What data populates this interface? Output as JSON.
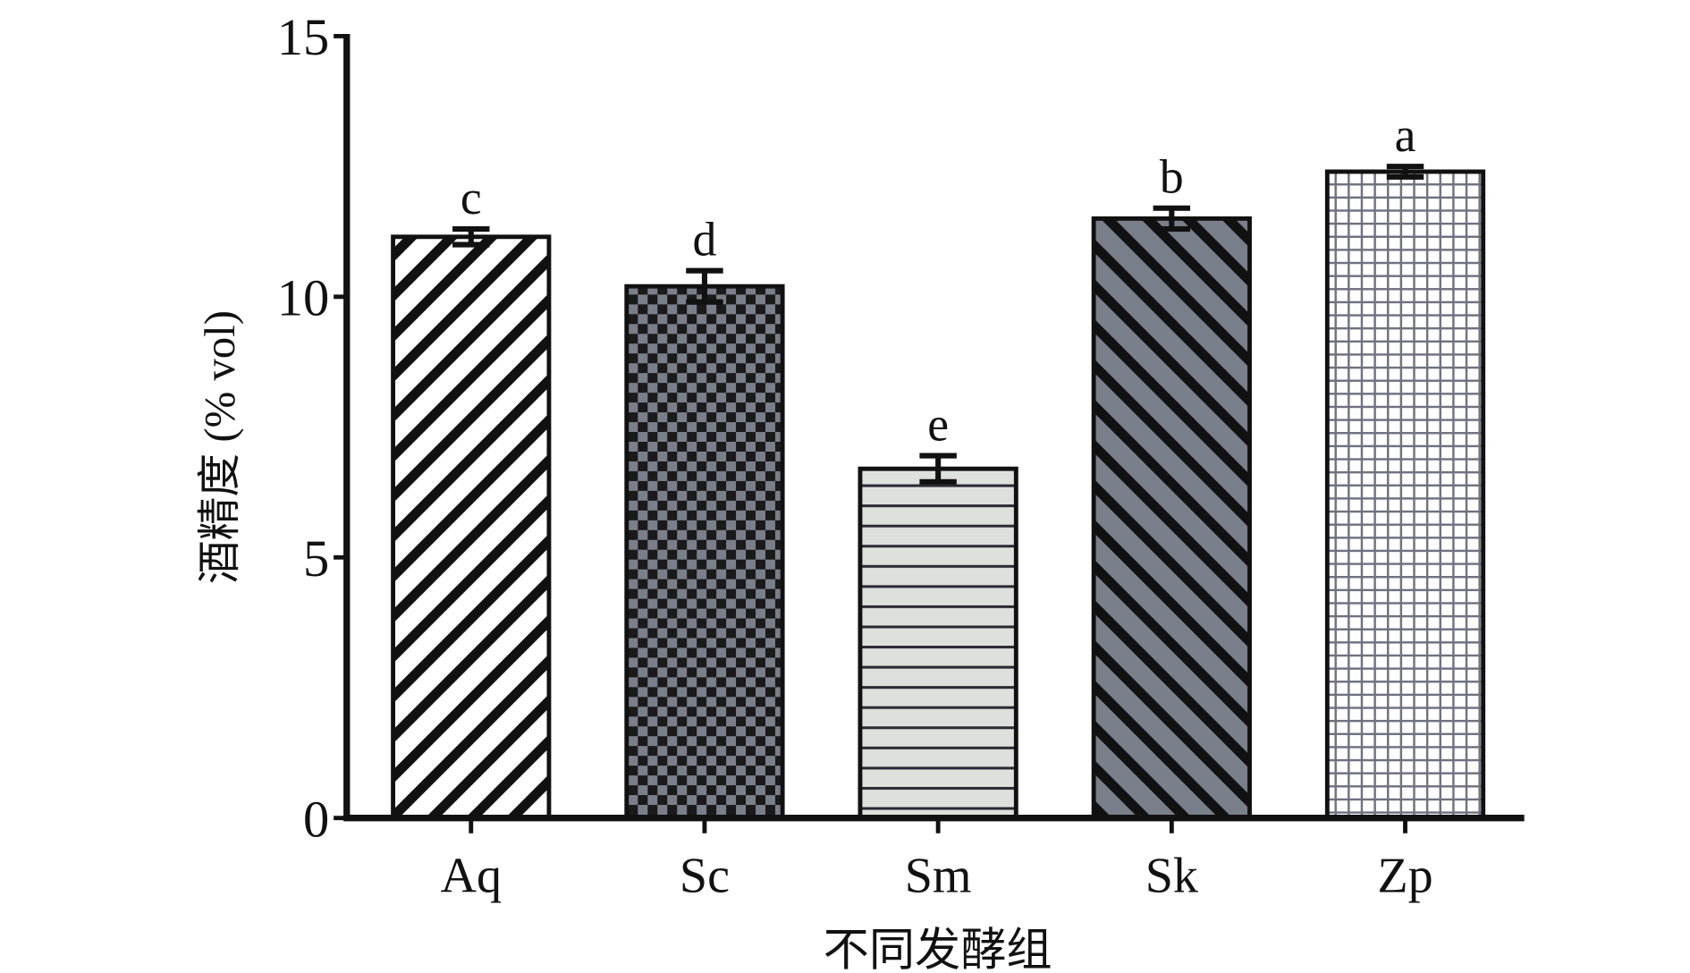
{
  "chart_data": {
    "type": "bar",
    "title": "",
    "xlabel": "不同发酵组",
    "ylabel": "酒精度 (% vol)",
    "ylim": [
      0,
      15
    ],
    "yticks": [
      "0",
      "5",
      "10",
      "15"
    ],
    "grid": false,
    "categories": [
      "Aq",
      "Sc",
      "Sm",
      "Sk",
      "Zp"
    ],
    "values": [
      11.15,
      10.2,
      6.7,
      11.5,
      12.4
    ],
    "errors": [
      0.15,
      0.3,
      0.25,
      0.2,
      0.1
    ],
    "significance_letters": [
      "c",
      "d",
      "e",
      "b",
      "a"
    ],
    "bar_patterns": [
      "diagonal-down-black-on-white",
      "checker-black-grey",
      "horizontal-lines-on-light-grey",
      "diagonal-up-black-on-grey",
      "grid-grey-on-white"
    ],
    "colors": {
      "axis": "#111111",
      "grey_fill": "#7a7f8c",
      "light_fill": "#dde1dc",
      "grid_line": "#6f7280"
    }
  }
}
